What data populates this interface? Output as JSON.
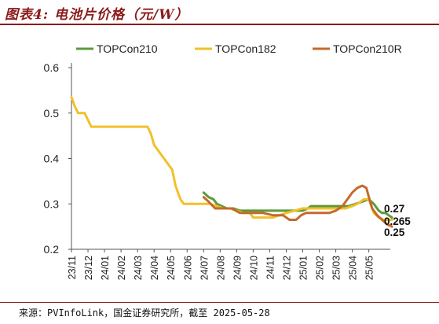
{
  "header": {
    "title": "图表4: 电池片价格（元/W）"
  },
  "footer": {
    "source": "来源：PVInfoLink，国金证券研究所，截至 2025-05-28"
  },
  "colors": {
    "title": "#8b1a1a",
    "TOPCon210": "#5c9a3a",
    "TOPCon182": "#f2c029",
    "TOPCon210R": "#c46a2b"
  },
  "chart_data": {
    "type": "line",
    "ylim": [
      0.2,
      0.6
    ],
    "yticks": [
      "0.2",
      "0.3",
      "0.4",
      "0.5",
      "0.6"
    ],
    "x_tick_labels": [
      "23/11",
      "23/12",
      "24/01",
      "24/02",
      "24/03",
      "24/04",
      "24/05",
      "24/06",
      "24/07",
      "24/08",
      "24/09",
      "24/10",
      "24/11",
      "24/12",
      "25/01",
      "25/02",
      "25/03",
      "25/04",
      "25/05"
    ],
    "legend_position": "top",
    "series": [
      {
        "name": "TOPCon210",
        "color": "#5c9a3a",
        "points": [
          [
            8.0,
            0.325
          ],
          [
            8.3,
            0.315
          ],
          [
            8.6,
            0.31
          ],
          [
            8.8,
            0.3
          ],
          [
            9.1,
            0.295
          ],
          [
            9.4,
            0.29
          ],
          [
            9.8,
            0.29
          ],
          [
            10.2,
            0.285
          ],
          [
            10.6,
            0.285
          ],
          [
            11,
            0.285
          ],
          [
            12,
            0.285
          ],
          [
            13,
            0.285
          ],
          [
            14,
            0.285
          ],
          [
            14.3,
            0.29
          ],
          [
            14.5,
            0.295
          ],
          [
            15,
            0.295
          ],
          [
            16,
            0.295
          ],
          [
            16.8,
            0.295
          ],
          [
            17.2,
            0.3
          ],
          [
            17.6,
            0.305
          ],
          [
            18.0,
            0.31
          ],
          [
            18.3,
            0.3
          ],
          [
            18.6,
            0.285
          ],
          [
            18.8,
            0.28
          ],
          [
            19.0,
            0.28
          ],
          [
            19.2,
            0.275
          ],
          [
            19.4,
            0.27
          ]
        ],
        "end_label": "0.27"
      },
      {
        "name": "TOPCon182",
        "color": "#f2c029",
        "points": [
          [
            0.0,
            0.535
          ],
          [
            0.2,
            0.515
          ],
          [
            0.4,
            0.5
          ],
          [
            0.8,
            0.5
          ],
          [
            1.2,
            0.47
          ],
          [
            1.6,
            0.47
          ],
          [
            2,
            0.47
          ],
          [
            3,
            0.47
          ],
          [
            4,
            0.47
          ],
          [
            4.6,
            0.47
          ],
          [
            4.8,
            0.455
          ],
          [
            5.0,
            0.43
          ],
          [
            5.4,
            0.41
          ],
          [
            5.8,
            0.39
          ],
          [
            6.1,
            0.375
          ],
          [
            6.3,
            0.34
          ],
          [
            6.6,
            0.31
          ],
          [
            6.8,
            0.3
          ],
          [
            7.2,
            0.3
          ],
          [
            7.6,
            0.3
          ],
          [
            8.0,
            0.3
          ],
          [
            8.4,
            0.3
          ],
          [
            8.8,
            0.295
          ],
          [
            9.2,
            0.29
          ],
          [
            9.6,
            0.29
          ],
          [
            10.0,
            0.285
          ],
          [
            10.4,
            0.28
          ],
          [
            10.8,
            0.28
          ],
          [
            11.0,
            0.27
          ],
          [
            11.6,
            0.27
          ],
          [
            12.2,
            0.27
          ],
          [
            12.6,
            0.275
          ],
          [
            13.0,
            0.28
          ],
          [
            13.5,
            0.285
          ],
          [
            14.0,
            0.29
          ],
          [
            14.6,
            0.29
          ],
          [
            15,
            0.29
          ],
          [
            16,
            0.29
          ],
          [
            16.6,
            0.29
          ],
          [
            17.0,
            0.295
          ],
          [
            17.3,
            0.3
          ],
          [
            17.7,
            0.31
          ],
          [
            18.0,
            0.31
          ],
          [
            18.3,
            0.28
          ],
          [
            18.6,
            0.27
          ],
          [
            18.9,
            0.265
          ],
          [
            19.1,
            0.265
          ],
          [
            19.4,
            0.265
          ]
        ],
        "end_label": "0.265"
      },
      {
        "name": "TOPCon210R",
        "color": "#c46a2b",
        "points": [
          [
            8.0,
            0.315
          ],
          [
            8.3,
            0.305
          ],
          [
            8.7,
            0.29
          ],
          [
            9.2,
            0.29
          ],
          [
            9.7,
            0.29
          ],
          [
            10.2,
            0.28
          ],
          [
            10.6,
            0.28
          ],
          [
            11,
            0.28
          ],
          [
            11.6,
            0.28
          ],
          [
            12.2,
            0.275
          ],
          [
            12.8,
            0.275
          ],
          [
            13.0,
            0.27
          ],
          [
            13.2,
            0.265
          ],
          [
            13.6,
            0.265
          ],
          [
            13.9,
            0.275
          ],
          [
            14.2,
            0.28
          ],
          [
            15,
            0.28
          ],
          [
            15.6,
            0.28
          ],
          [
            16.0,
            0.285
          ],
          [
            16.4,
            0.295
          ],
          [
            16.8,
            0.315
          ],
          [
            17.0,
            0.325
          ],
          [
            17.3,
            0.335
          ],
          [
            17.6,
            0.34
          ],
          [
            17.85,
            0.335
          ],
          [
            18.0,
            0.315
          ],
          [
            18.2,
            0.29
          ],
          [
            18.5,
            0.275
          ],
          [
            18.8,
            0.265
          ],
          [
            19.1,
            0.255
          ],
          [
            19.4,
            0.25
          ]
        ],
        "end_label": "0.25"
      }
    ]
  }
}
